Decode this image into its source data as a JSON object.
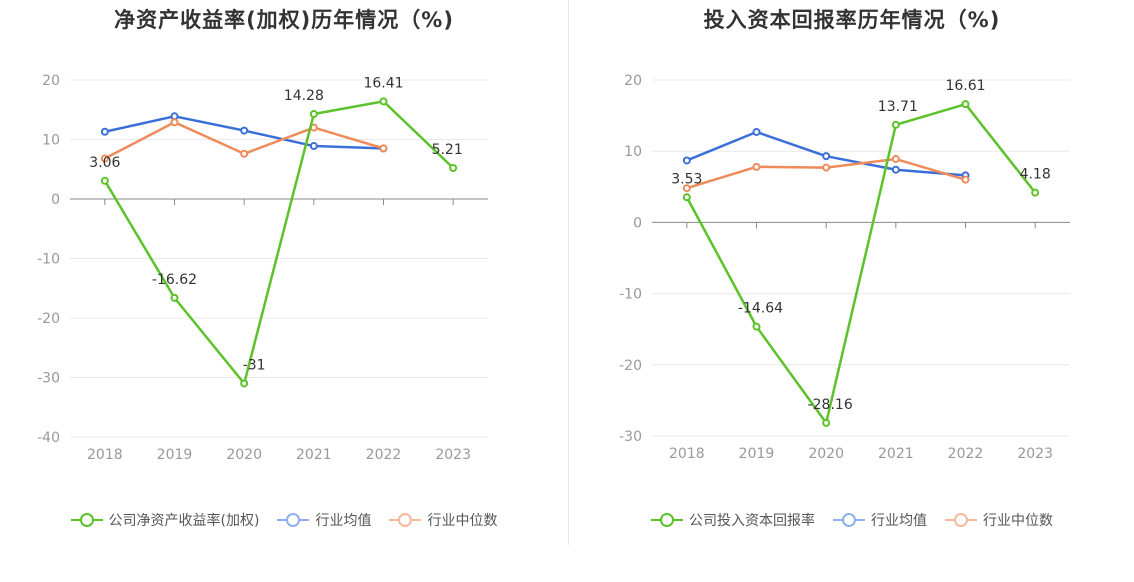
{
  "chart_data": [
    {
      "type": "line",
      "title": "净资产收益率(加权)历年情况（%)",
      "categories": [
        "2018",
        "2019",
        "2020",
        "2021",
        "2022",
        "2023"
      ],
      "ylim": [
        -40,
        20
      ],
      "yticks": [
        20,
        10,
        0,
        -10,
        -20,
        -30,
        -40
      ],
      "series": [
        {
          "name": "公司净资产收益率(加权)",
          "color": "#5cc22a",
          "labeled": true,
          "values": [
            3.06,
            -16.62,
            -31,
            14.28,
            16.41,
            5.21
          ],
          "labels": [
            "3.06",
            "-16.62",
            "-31",
            "14.28",
            "16.41",
            "5.21"
          ]
        },
        {
          "name": "行业均值",
          "color": "#3a6fd8",
          "labeled": false,
          "values": [
            11.3,
            13.9,
            11.5,
            8.9,
            8.5,
            null
          ]
        },
        {
          "name": "行业中位数",
          "color": "#ef8a5a",
          "labeled": false,
          "values": [
            6.8,
            12.9,
            7.6,
            12.0,
            8.5,
            null
          ]
        }
      ],
      "legend": [
        "公司净资产收益率(加权)",
        "行业均值",
        "行业中位数"
      ]
    },
    {
      "type": "line",
      "title": "投入资本回报率历年情况（%)",
      "categories": [
        "2018",
        "2019",
        "2020",
        "2021",
        "2022",
        "2023"
      ],
      "ylim": [
        -30,
        20
      ],
      "yticks": [
        20,
        10,
        0,
        -10,
        -20,
        -30
      ],
      "series": [
        {
          "name": "公司投入资本回报率",
          "color": "#5cc22a",
          "labeled": true,
          "values": [
            3.53,
            -14.64,
            -28.16,
            13.71,
            16.61,
            4.18
          ],
          "labels": [
            "3.53",
            "-14.64",
            "-28.16",
            "13.71",
            "16.61",
            "4.18"
          ]
        },
        {
          "name": "行业均值",
          "color": "#3a6fd8",
          "labeled": false,
          "values": [
            8.7,
            12.7,
            9.3,
            7.4,
            6.6,
            null
          ]
        },
        {
          "name": "行业中位数",
          "color": "#ef8a5a",
          "labeled": false,
          "values": [
            4.8,
            7.8,
            7.7,
            8.9,
            6.0,
            null
          ]
        }
      ],
      "legend": [
        "公司投入资本回报率",
        "行业均值",
        "行业中位数"
      ]
    }
  ]
}
